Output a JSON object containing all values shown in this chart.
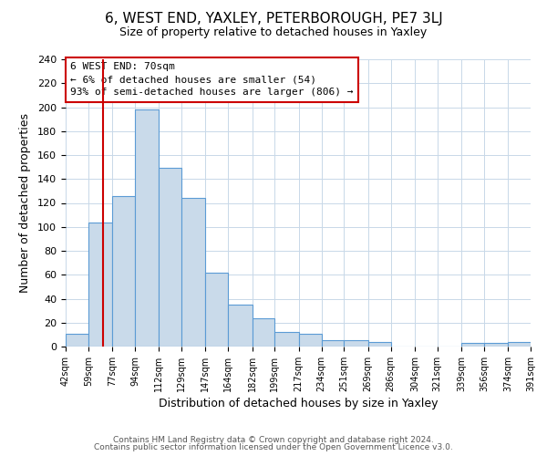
{
  "title": "6, WEST END, YAXLEY, PETERBOROUGH, PE7 3LJ",
  "subtitle": "Size of property relative to detached houses in Yaxley",
  "xlabel": "Distribution of detached houses by size in Yaxley",
  "ylabel": "Number of detached properties",
  "bar_edges": [
    42,
    59,
    77,
    94,
    112,
    129,
    147,
    164,
    182,
    199,
    217,
    234,
    251,
    269,
    286,
    304,
    321,
    339,
    356,
    374,
    391
  ],
  "bar_heights": [
    11,
    104,
    126,
    198,
    149,
    124,
    62,
    35,
    24,
    12,
    11,
    5,
    5,
    4,
    0,
    0,
    0,
    3,
    3,
    4
  ],
  "bar_color": "#c9daea",
  "bar_edge_color": "#5b9bd5",
  "vline_x": 70,
  "vline_color": "#cc0000",
  "ylim": [
    0,
    240
  ],
  "yticks": [
    0,
    20,
    40,
    60,
    80,
    100,
    120,
    140,
    160,
    180,
    200,
    220,
    240
  ],
  "xtick_labels": [
    "42sqm",
    "59sqm",
    "77sqm",
    "94sqm",
    "112sqm",
    "129sqm",
    "147sqm",
    "164sqm",
    "182sqm",
    "199sqm",
    "217sqm",
    "234sqm",
    "251sqm",
    "269sqm",
    "286sqm",
    "304sqm",
    "321sqm",
    "339sqm",
    "356sqm",
    "374sqm",
    "391sqm"
  ],
  "annotation_title": "6 WEST END: 70sqm",
  "annotation_line1": "← 6% of detached houses are smaller (54)",
  "annotation_line2": "93% of semi-detached houses are larger (806) →",
  "annotation_box_color": "#ffffff",
  "annotation_box_edge_color": "#cc0000",
  "footer_line1": "Contains HM Land Registry data © Crown copyright and database right 2024.",
  "footer_line2": "Contains public sector information licensed under the Open Government Licence v3.0.",
  "background_color": "#ffffff",
  "grid_color": "#c8d8e8"
}
